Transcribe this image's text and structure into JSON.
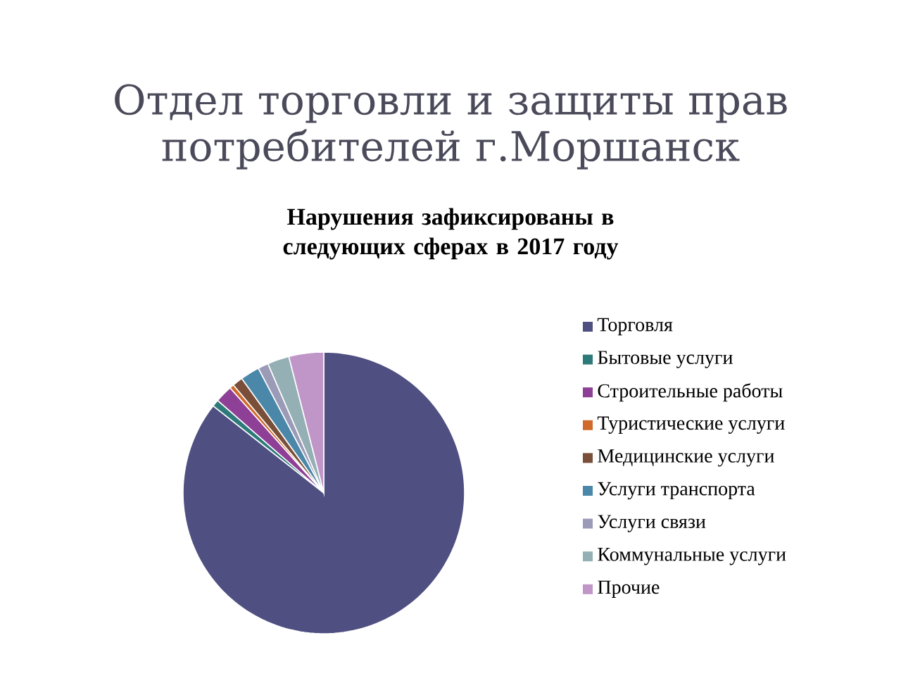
{
  "chart_data": {
    "type": "pie",
    "title": "Отдел торговли и защиты прав потребителей г.Моршанск",
    "subtitle": "Нарушения зафиксированы в следующих сферах  в 2017 году",
    "categories": [
      "Торговля",
      "Бытовые услуги",
      "Строительные работы",
      "Туристические услуги",
      "Медицинские услуги",
      "Услуги транспорта",
      "Услуги связи",
      "Коммунальные услуги",
      "Прочие"
    ],
    "values": [
      85.6,
      0.8,
      2.0,
      0.5,
      1.2,
      2.2,
      1.2,
      2.5,
      4.0
    ],
    "colors": [
      "#4f4f81",
      "#2e7a7a",
      "#8e3f96",
      "#d0692a",
      "#7a4f3a",
      "#4a87a8",
      "#9b9bb8",
      "#94b0b4",
      "#c096c8"
    ],
    "legend": "right"
  }
}
